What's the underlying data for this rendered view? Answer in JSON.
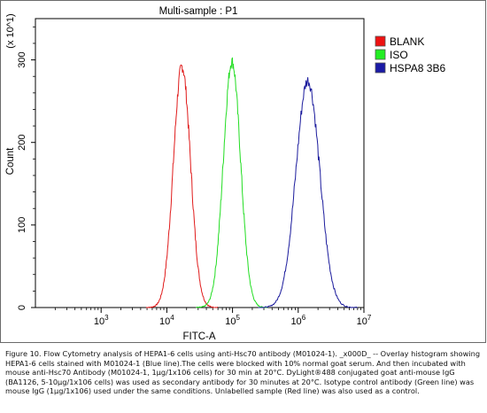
{
  "chart_data": {
    "type": "line",
    "title": "Multi-sample : P1",
    "xlabel": "FITC-A",
    "ylabel": "Count",
    "y_multiplier": "(x 10^1)",
    "x_scale": "log",
    "xlim": [
      100,
      10000000
    ],
    "ylim": [
      0,
      350
    ],
    "x_ticks": [
      {
        "value": 1000,
        "base": "10",
        "exp": "3"
      },
      {
        "value": 10000,
        "base": "10",
        "exp": "4"
      },
      {
        "value": 100000,
        "base": "10",
        "exp": "5"
      },
      {
        "value": 1000000,
        "base": "10",
        "exp": "6"
      },
      {
        "value": 10000000,
        "base": "10",
        "exp": "7"
      }
    ],
    "y_ticks": [
      0,
      100,
      200,
      300
    ],
    "legend_position": "top-right",
    "series": [
      {
        "name": "BLANK",
        "color": "#e01b1b",
        "legend_color": "#ee1111",
        "peak_x": 17000,
        "peak_y": 292,
        "spread_log": 0.13
      },
      {
        "name": "ISO",
        "color": "#22dd22",
        "legend_color": "#22ee22",
        "peak_x": 98000,
        "peak_y": 298,
        "spread_log": 0.13
      },
      {
        "name": "HSPA8 3B6",
        "color": "#1a1a9c",
        "legend_color": "#1a1aa6",
        "peak_x": 1400000,
        "peak_y": 275,
        "spread_log": 0.18
      }
    ]
  },
  "caption": "Figure 10. Flow Cytometry analysis of HEPA1-6 cells using anti-Hsc70 antibody (M01024-1). _x000D_ -- Overlay histogram showing HEPA1-6 cells stained with M01024-1 (Blue line).The cells were blocked with 10% normal goat serum. And then incubated with mouse anti-Hsc70 Antibody (M01024-1, 1μg/1x106 cells) for 30 min at 20°C. DyLight®488 conjugated goat anti-mouse IgG (BA1126, 5-10μg/1x106 cells) was used as secondary antibody for 30 minutes at 20°C. Isotype control antibody (Green line) was mouse IgG (1μg/1x106) used under the same conditions. Unlabelled sample (Red line) was also used as a control."
}
